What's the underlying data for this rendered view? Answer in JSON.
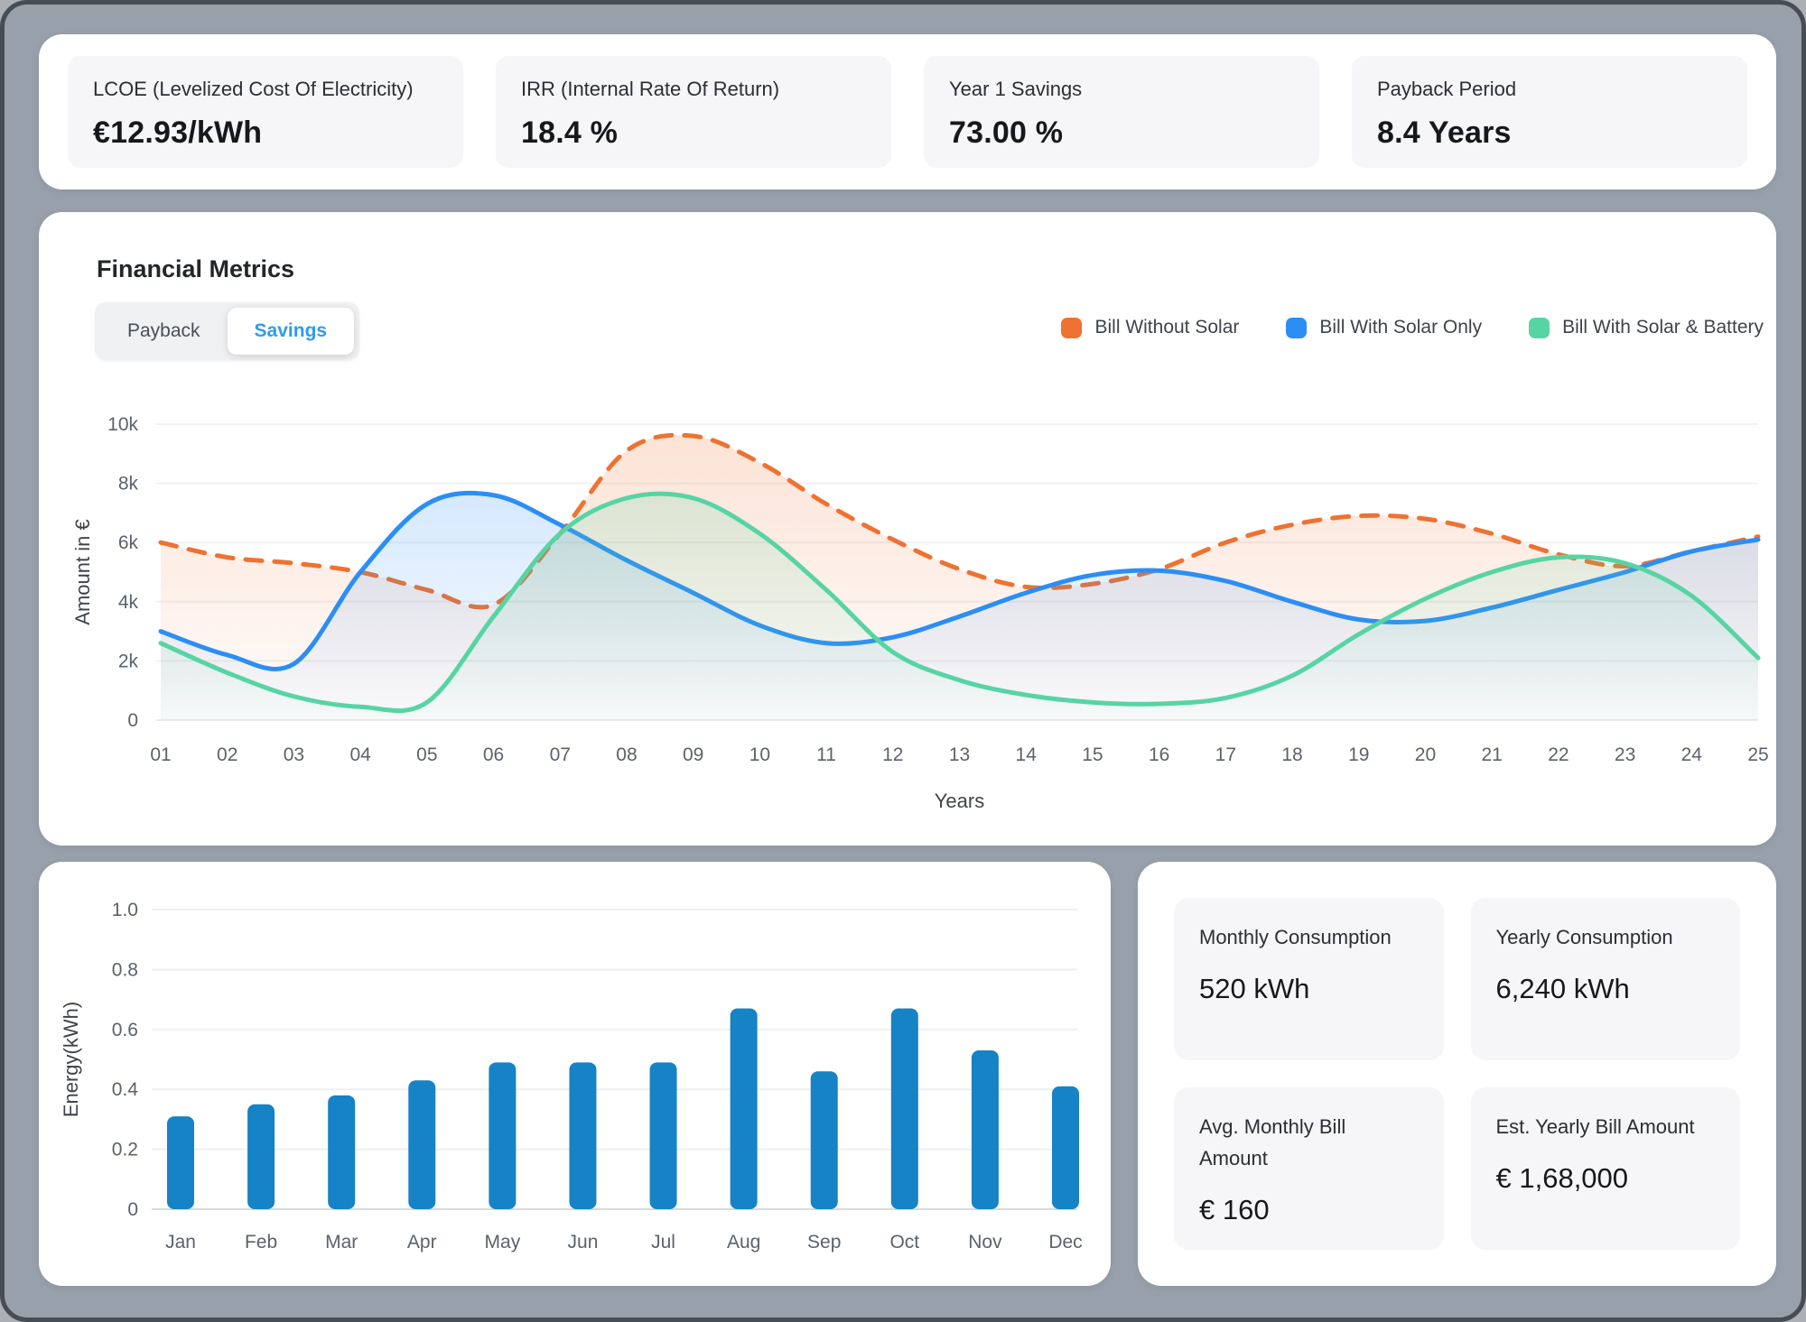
{
  "kpi": {
    "cards": [
      {
        "label": "LCOE (Levelized Cost Of Electricity)",
        "value": "€12.93/kWh"
      },
      {
        "label": "IRR (Internal Rate Of Return)",
        "value": "18.4 %"
      },
      {
        "label": "Year 1 Savings",
        "value": "73.00 %"
      },
      {
        "label": "Payback Period",
        "value": "8.4 Years"
      }
    ]
  },
  "financial_metrics": {
    "title": "Financial Metrics",
    "tabs": [
      {
        "label": "Payback",
        "active": false
      },
      {
        "label": "Savings",
        "active": true
      }
    ],
    "legend": [
      {
        "label": "Bill Without Solar",
        "color": "#EE7231"
      },
      {
        "label": "Bill With Solar Only",
        "color": "#2C8EF4"
      },
      {
        "label": "Bill With Solar & Battery",
        "color": "#57D4A4"
      }
    ]
  },
  "consumption": {
    "cards": [
      {
        "label": "Monthly Consumption",
        "value": "520 kWh"
      },
      {
        "label": "Yearly Consumption",
        "value": "6,240 kWh"
      },
      {
        "label": "Avg. Monthly Bill Amount",
        "value": "€ 160"
      },
      {
        "label": "Est. Yearly Bill Amount",
        "value": "€ 1,68,000"
      }
    ]
  },
  "chart_data": [
    {
      "id": "savings-line",
      "type": "area",
      "title": "",
      "xlabel": "Years",
      "ylabel": "Amount in €",
      "x": [
        "01",
        "02",
        "03",
        "04",
        "05",
        "06",
        "07",
        "08",
        "09",
        "10",
        "11",
        "12",
        "13",
        "14",
        "15",
        "16",
        "17",
        "18",
        "19",
        "20",
        "21",
        "22",
        "23",
        "24",
        "25"
      ],
      "ylim": [
        0,
        10000
      ],
      "yticks": [
        0,
        2000,
        4000,
        6000,
        8000,
        10000
      ],
      "ytick_labels": [
        "0",
        "2k",
        "4k",
        "6k",
        "8k",
        "10k"
      ],
      "grid": true,
      "legend_position": "top-right",
      "series": [
        {
          "name": "Bill Without Solar",
          "color": "#EE7231",
          "style": "dashed",
          "values": [
            6000,
            5500,
            5300,
            5000,
            4400,
            3900,
            6300,
            9100,
            9600,
            8700,
            7300,
            6100,
            5100,
            4500,
            4600,
            5100,
            6000,
            6600,
            6900,
            6800,
            6300,
            5600,
            5200,
            5700,
            6200
          ]
        },
        {
          "name": "Bill With Solar Only",
          "color": "#2C8EF4",
          "style": "solid",
          "values": [
            3000,
            2200,
            1900,
            5000,
            7300,
            7600,
            6600,
            5400,
            4300,
            3200,
            2600,
            2800,
            3500,
            4300,
            4900,
            5050,
            4700,
            4000,
            3400,
            3350,
            3800,
            4400,
            5000,
            5700,
            6100
          ]
        },
        {
          "name": "Bill With Solar & Battery",
          "color": "#57D4A4",
          "style": "solid",
          "values": [
            2600,
            1600,
            800,
            450,
            600,
            3500,
            6300,
            7500,
            7500,
            6300,
            4400,
            2300,
            1350,
            850,
            600,
            550,
            750,
            1500,
            2900,
            4100,
            5000,
            5500,
            5300,
            4200,
            2100
          ]
        }
      ]
    },
    {
      "id": "energy-bars",
      "type": "bar",
      "title": "",
      "xlabel": "",
      "ylabel": "Energy(kWh)",
      "categories": [
        "Jan",
        "Feb",
        "Mar",
        "Apr",
        "May",
        "Jun",
        "Jul",
        "Aug",
        "Sep",
        "Oct",
        "Nov",
        "Dec"
      ],
      "values": [
        0.31,
        0.35,
        0.38,
        0.43,
        0.49,
        0.49,
        0.49,
        0.67,
        0.46,
        0.67,
        0.53,
        0.41
      ],
      "bar_color": "#1583C5",
      "ylim": [
        0,
        1.0
      ],
      "yticks": [
        0,
        0.2,
        0.4,
        0.6,
        0.8,
        1.0
      ],
      "ytick_labels": [
        "0",
        "0.2",
        "0.4",
        "0.6",
        "0.8",
        "1.0"
      ],
      "grid": true
    }
  ]
}
